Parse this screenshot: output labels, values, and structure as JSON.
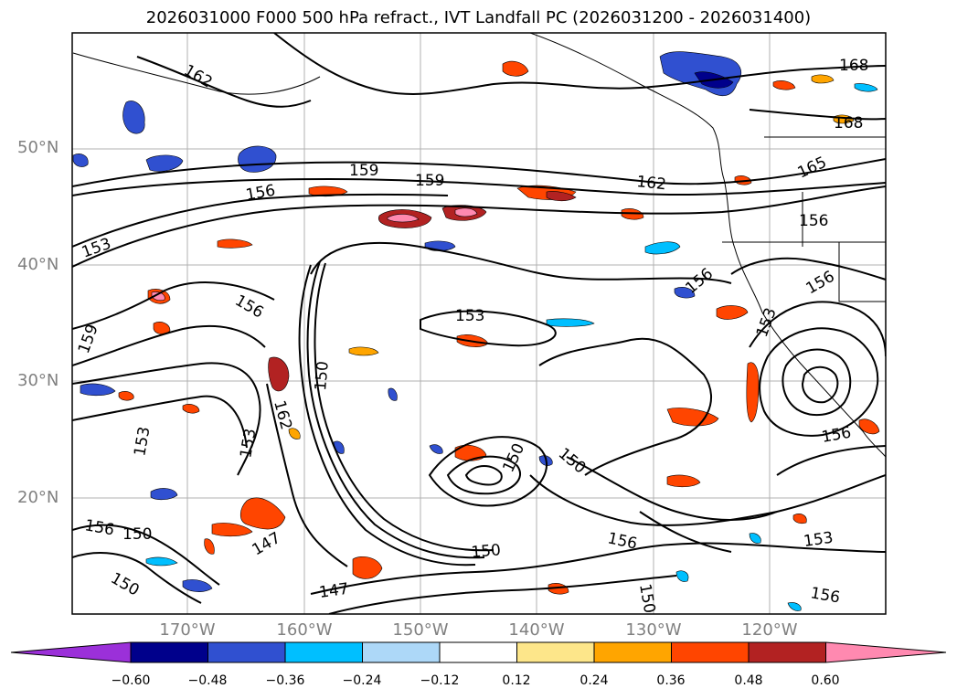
{
  "title": "2026031000 F000 500 hPa refract., IVT Landfall PC (2026031200 - 2026031400)",
  "lat_labels": [
    "50°N",
    "40°N",
    "30°N",
    "20°N"
  ],
  "lon_labels": [
    "170°W",
    "160°W",
    "150°W",
    "140°W",
    "130°W",
    "120°W"
  ],
  "contour_labels": [
    "162",
    "168",
    "168",
    "159",
    "159",
    "162",
    "165",
    "156",
    "156",
    "153",
    "156",
    "156",
    "153",
    "159",
    "150",
    "153",
    "162",
    "153",
    "150",
    "150",
    "156",
    "150",
    "153",
    "156",
    "156",
    "150",
    "147",
    "150",
    "147",
    "156",
    "153",
    "156",
    "150"
  ],
  "colorbar": {
    "ticks": [
      "−0.60",
      "−0.48",
      "−0.36",
      "−0.24",
      "−0.12",
      "0.12",
      "0.24",
      "0.36",
      "0.48",
      "0.60"
    ],
    "colors": [
      "#9b30d9",
      "#00008b",
      "#3050d0",
      "#00bfff",
      "#add8f8",
      "#ffffff",
      "#fde68a",
      "#ffa500",
      "#ff4500",
      "#b22222",
      "#ff89b0"
    ]
  }
}
